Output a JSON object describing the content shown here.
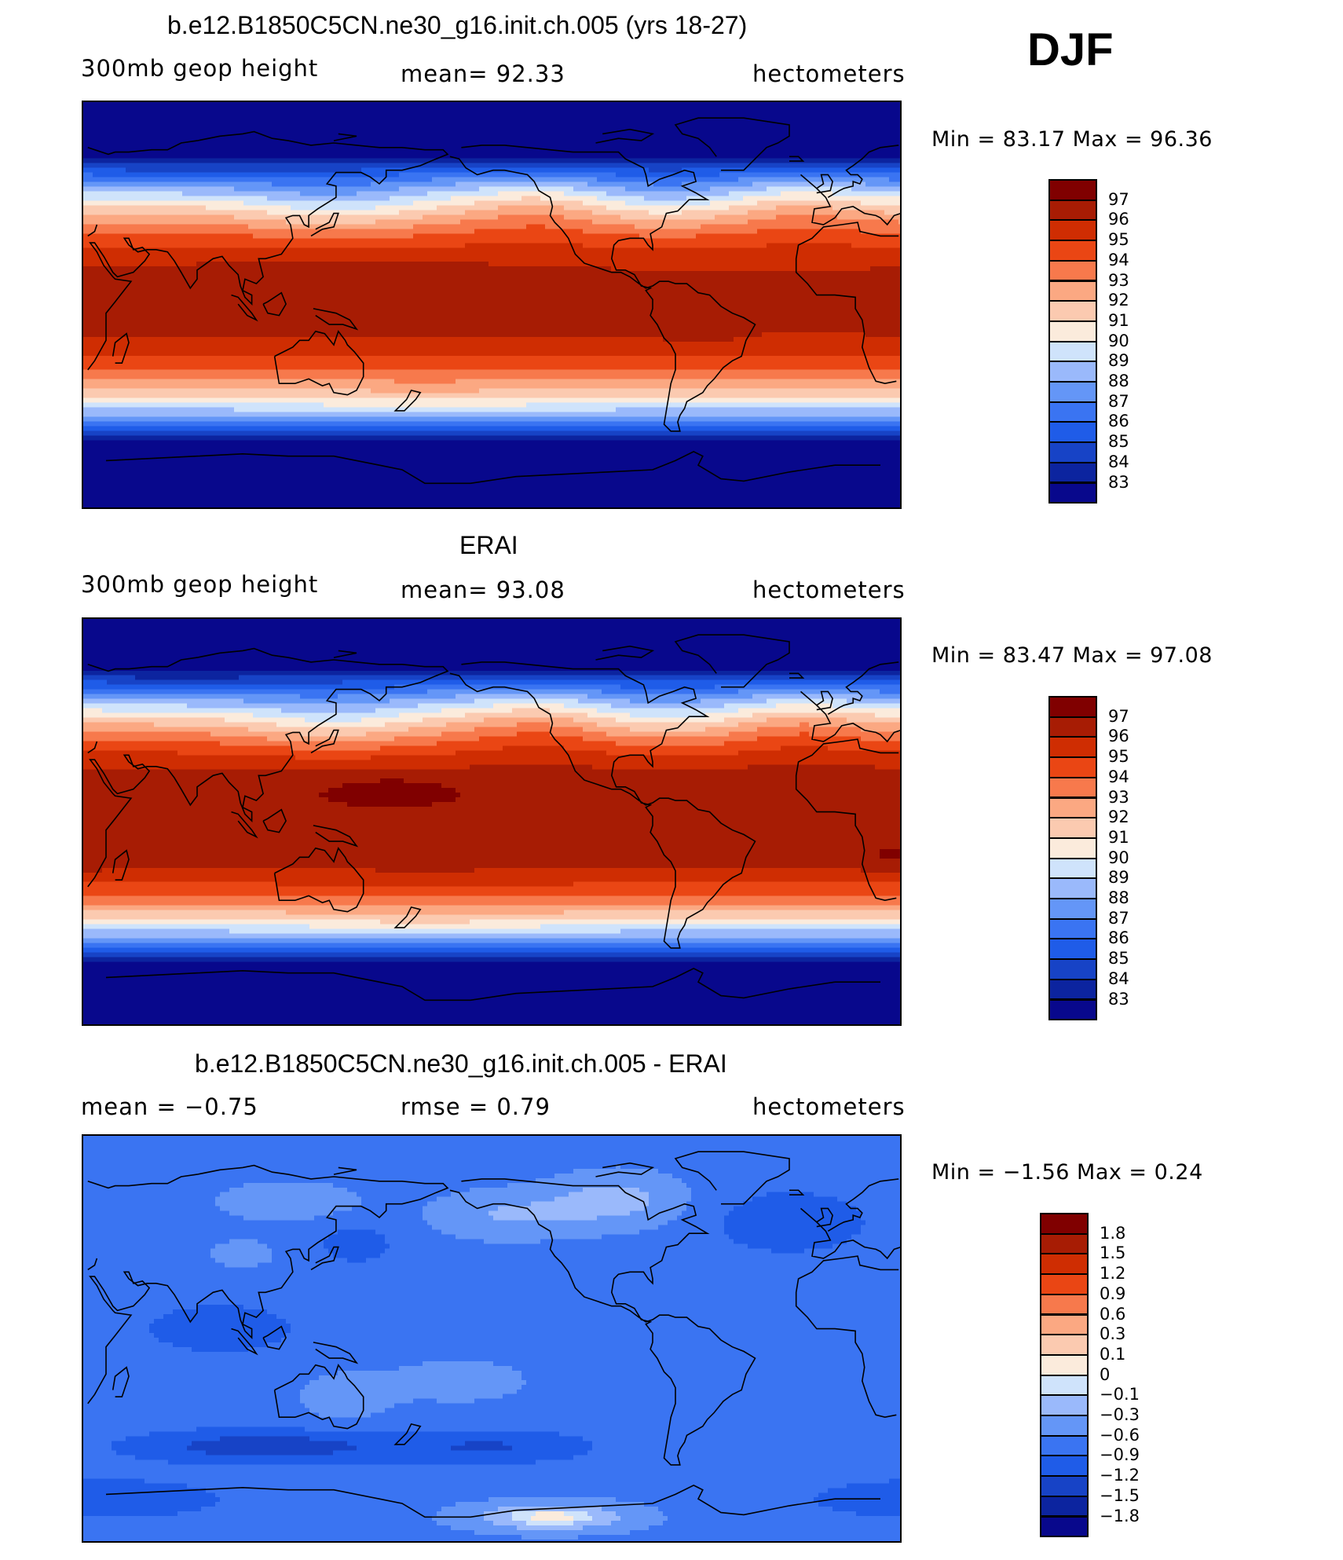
{
  "season": "DJF",
  "colors": {
    "levels15": [
      "#08088c",
      "#0c249f",
      "#1743c6",
      "#1f5ce8",
      "#3a74f2",
      "#6496f7",
      "#9ab9fb",
      "#cfe3fb",
      "#fbebdc",
      "#fbcab0",
      "#fba882",
      "#f7794c",
      "#ea4614",
      "#cf2d02",
      "#a71c04",
      "#800000"
    ]
  },
  "panels": [
    {
      "title": "b.e12.B1850C5CN.ne30_g16.init.ch.005 (yrs 18-27)",
      "left_label": "300mb geop height",
      "center_label": "mean=  92.33",
      "right_label": "hectometers",
      "minmax_label": "Min =   83.17 Max =   96.36",
      "field": "model",
      "colorbar": {
        "labels": [
          "97",
          "96",
          "95",
          "94",
          "93",
          "92",
          "91",
          "90",
          "89",
          "88",
          "87",
          "86",
          "85",
          "84",
          "83"
        ]
      }
    },
    {
      "title": "ERAI",
      "left_label": "300mb geop height",
      "center_label": "mean=  93.08",
      "right_label": "hectometers",
      "minmax_label": "Min =   83.47 Max =   97.08",
      "field": "obs",
      "colorbar": {
        "labels": [
          "97",
          "96",
          "95",
          "94",
          "93",
          "92",
          "91",
          "90",
          "89",
          "88",
          "87",
          "86",
          "85",
          "84",
          "83"
        ]
      }
    },
    {
      "title": "b.e12.B1850C5CN.ne30_g16.init.ch.005 - ERAI",
      "left_label": "mean =   −0.75",
      "center_label": "rmse =    0.79",
      "right_label": "hectometers",
      "minmax_label": "Min =   −1.56 Max =    0.24",
      "field": "diff",
      "colorbar": {
        "labels": [
          "1.8",
          "1.5",
          "1.2",
          "0.9",
          "0.6",
          "0.3",
          "0.1",
          "0",
          "−0.1",
          "−0.3",
          "−0.6",
          "−0.9",
          "−1.2",
          "−1.5",
          "−1.8"
        ]
      }
    }
  ]
}
